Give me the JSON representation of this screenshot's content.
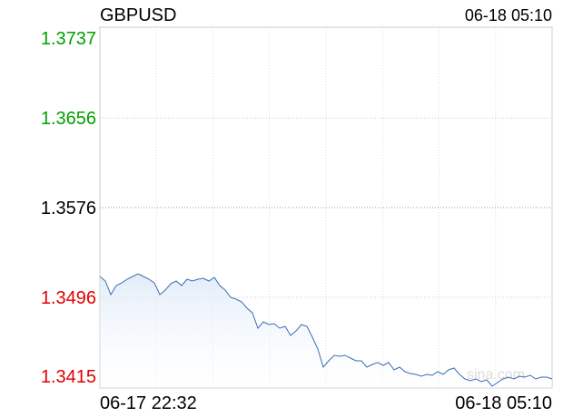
{
  "chart_data": {
    "type": "line",
    "title": "GBPUSD",
    "timestamp": "06-18 05:10",
    "watermark": "sina.com",
    "categories": [
      "06-17 22:32",
      null,
      null,
      null,
      null,
      null,
      null,
      null,
      null,
      null,
      null,
      null,
      null,
      null,
      null,
      null,
      null,
      null,
      null,
      null,
      null,
      null,
      null,
      null,
      null,
      null,
      null,
      null,
      null,
      null,
      null,
      null,
      null,
      null,
      null,
      null,
      null,
      null,
      null,
      null,
      null,
      null,
      null,
      null,
      null,
      null,
      null,
      null,
      null,
      null,
      null,
      null,
      null,
      null,
      null,
      null,
      null,
      null,
      null,
      null,
      null,
      null,
      null,
      null,
      null,
      null,
      null,
      null,
      null,
      null,
      null,
      null,
      null,
      null,
      null,
      null,
      null,
      null,
      null,
      null,
      null,
      null,
      null,
      "06-18 05:10"
    ],
    "series": [
      {
        "color": "#3a6db5",
        "values": [
          1.35145,
          1.35105,
          1.34983,
          1.35064,
          1.35088,
          1.35121,
          1.35145,
          1.35169,
          1.35145,
          1.35121,
          1.35088,
          1.34983,
          1.35024,
          1.3508,
          1.35105,
          1.35064,
          1.35121,
          1.35105,
          1.35121,
          1.35129,
          1.35105,
          1.35137,
          1.35064,
          1.35024,
          1.34959,
          1.34943,
          1.34919,
          1.34862,
          1.34821,
          1.34684,
          1.34741,
          1.34716,
          1.34724,
          1.34684,
          1.347,
          1.34619,
          1.3466,
          1.34716,
          1.347,
          1.34603,
          1.34498,
          1.34336,
          1.34393,
          1.34441,
          1.34433,
          1.34441,
          1.34417,
          1.34393,
          1.34393,
          1.34336,
          1.3436,
          1.34377,
          1.34352,
          1.34377,
          1.34312,
          1.34336,
          1.34296,
          1.34279,
          1.34271,
          1.34255,
          1.34271,
          1.34263,
          1.34296,
          1.34271,
          1.34312,
          1.34328,
          1.34271,
          1.34231,
          1.34215,
          1.34231,
          1.34207,
          1.34223,
          1.34166,
          1.34199,
          1.34231,
          1.34247,
          1.34231,
          1.34255,
          1.34247,
          1.34263,
          1.34231,
          1.34247,
          1.34247,
          1.34231
        ]
      }
    ],
    "ylim": [
      1.3415,
      1.3737
    ],
    "yticks": [
      1.3415,
      1.3496,
      1.3576,
      1.3656,
      1.3737
    ],
    "ytick_colors": [
      "#e00000",
      "#e00000",
      "#000000",
      "#00a000",
      "#00a000"
    ],
    "area_fill": true,
    "grid": true
  }
}
